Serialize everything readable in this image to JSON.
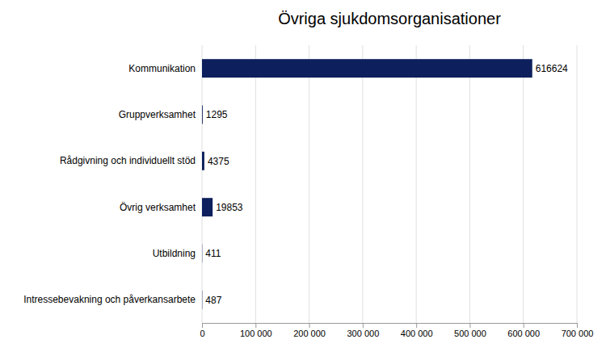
{
  "chart_data": {
    "type": "bar",
    "orientation": "horizontal",
    "title": "Övriga sjukdomsorganisationer",
    "categories": [
      "Kommunikation",
      "Gruppverksamhet",
      "Rådgivning och individuellt stöd",
      "Övrig verksamhet",
      "Utbildning",
      "Intressebevakning och påverkansarbete"
    ],
    "values": [
      616624,
      1295,
      4375,
      19853,
      411,
      487
    ],
    "color": "#0d1f5c",
    "xlim": [
      0,
      700000
    ],
    "xticks": [
      0,
      {
        "value": 100000,
        "label": "100 000"
      },
      {
        "value": 200000,
        "label": "200 000"
      },
      {
        "value": 300000,
        "label": "300 000"
      },
      {
        "value": 400000,
        "label": "400 000"
      },
      {
        "value": 500000,
        "label": "500 000"
      },
      {
        "value": 600000,
        "label": "600 000"
      },
      {
        "value": 700000,
        "label": "700 000"
      }
    ],
    "grid": true,
    "data_labels": true
  }
}
